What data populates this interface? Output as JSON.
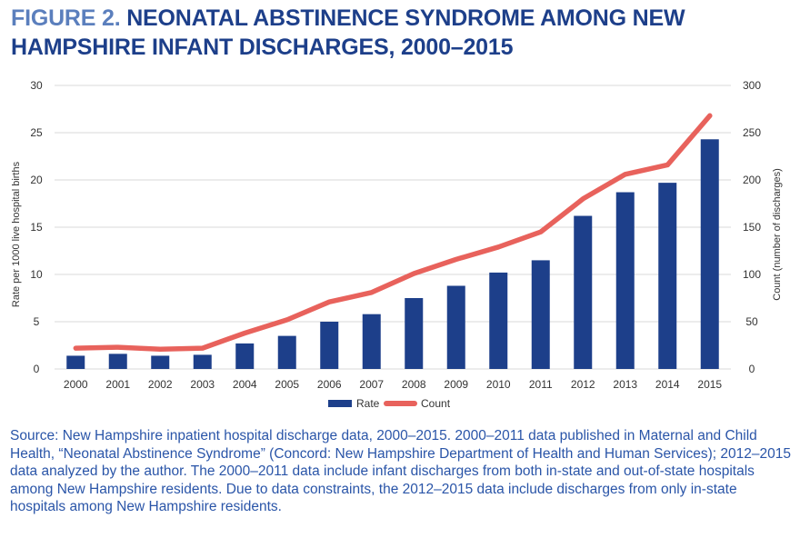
{
  "title": {
    "label": "FIGURE 2.",
    "text": "NEONATAL ABSTINENCE SYNDROME AMONG NEW HAMPSHIRE INFANT DISCHARGES, 2000–2015"
  },
  "colors": {
    "title_label": "#5b7fbd",
    "title_text": "#1d3f8a",
    "bar": "#1d3f8a",
    "line": "#e8625c",
    "grid": "#d9d9d9",
    "source_text": "#2a55a8"
  },
  "chart_data": {
    "type": "bar",
    "categories": [
      "2000",
      "2001",
      "2002",
      "2003",
      "2004",
      "2005",
      "2006",
      "2007",
      "2008",
      "2009",
      "2010",
      "2011",
      "2012",
      "2013",
      "2014",
      "2015"
    ],
    "series": [
      {
        "name": "Rate",
        "type": "bar",
        "axis": "left",
        "values": [
          1.4,
          1.6,
          1.4,
          1.5,
          2.7,
          3.5,
          5.0,
          5.8,
          7.5,
          8.8,
          10.2,
          11.5,
          16.2,
          18.7,
          19.7,
          24.3
        ]
      },
      {
        "name": "Count",
        "type": "line",
        "axis": "right",
        "values": [
          22,
          23,
          21,
          22,
          38,
          52,
          71,
          81,
          101,
          116,
          129,
          145,
          180,
          206,
          216,
          268
        ]
      }
    ],
    "ylabel": "Rate per 1000 live hospital births",
    "ylabel_right": "Count (number of discharges)",
    "ylim": [
      0,
      30
    ],
    "ylim_right": [
      0,
      300
    ],
    "yticks": [
      "0",
      "5",
      "10",
      "15",
      "20",
      "25",
      "30"
    ],
    "yticks_right": [
      "0",
      "50",
      "100",
      "150",
      "200",
      "250",
      "300"
    ],
    "grid": true,
    "legend_position": "bottom-center"
  },
  "source": "Source: New Hampshire inpatient hospital discharge data, 2000–2015. 2000–2011 data published in Maternal and Child Health, “Neonatal Abstinence Syndrome” (Concord: New Hampshire Department of Health and Human Services); 2012–2015 data analyzed by the author. The 2000–2011 data include infant discharges from both in-state and out-of-state hospitals among New Hampshire residents. Due to data constraints, the 2012–2015 data include discharges from only in-state hospitals among New Hampshire residents."
}
